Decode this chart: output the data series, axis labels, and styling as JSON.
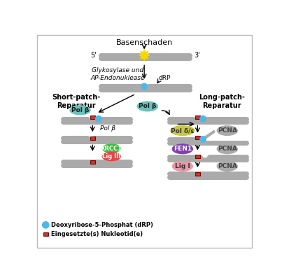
{
  "title": "Basenschaden",
  "bg_color": "#ffffff",
  "border_color": "#bbbbbb",
  "dna_color": "#aaaaaa",
  "nucleotide_color": "#c0392b",
  "dRP_color": "#4db8e8",
  "short_patch_label": "Short-patch-\nReparatur",
  "long_patch_label": "Long-patch-\nReparatur",
  "step1_label": "Glykosylase und\nAP-Endonuklease",
  "dRP_label": "dRP",
  "legend_dRP": "Deoxyribose-5-Phosphat (dRP)",
  "legend_nuc": "Eingesetzte(s) Nukleotid(e)",
  "pol_b_color": "#6dbfb8",
  "pol_de_color": "#c8c840",
  "FEN1_color": "#8040b0",
  "LigI_color": "#e898a8",
  "XRCC1_color": "#38c038",
  "LigIII_color": "#e04848",
  "PCNA_color": "#aaaaaa"
}
